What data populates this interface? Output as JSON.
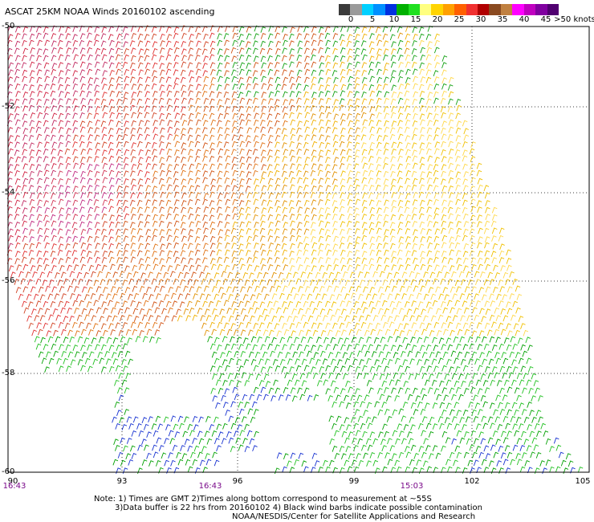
{
  "title": "ASCAT 25KM NOAA Winds 20160102 ascending",
  "legend": {
    "labels": [
      "0",
      "5",
      "10",
      "15",
      "20",
      "25",
      "30",
      "35",
      "40",
      "45",
      ">50 knots"
    ],
    "colors": [
      "#3a3a3a",
      "#9a9a9a",
      "#00d0ff",
      "#0090ff",
      "#0030e0",
      "#00b000",
      "#20e020",
      "#ffff80",
      "#ffd400",
      "#ffa000",
      "#ff6000",
      "#f03030",
      "#b00000",
      "#8a4a20",
      "#c08040",
      "#ff00ff",
      "#c000c0",
      "#8000a0",
      "#500070"
    ]
  },
  "axes": {
    "lat_labels": [
      "-50",
      "-52",
      "-54",
      "-56",
      "-58",
      "-60"
    ],
    "lon_labels": [
      "90",
      "93",
      "96",
      "99",
      "102",
      "105"
    ],
    "time_labels": [
      "16:43",
      "16:43",
      "15:03"
    ]
  },
  "notes": {
    "line1": "Note: 1) Times are GMT 2)Times along bottom correspond to measurement at ~55S",
    "line2": "3)Data buffer is 22 hrs from 20160102 4) Black wind barbs indicate possible contamination",
    "line3": "NOAA/NESDIS/Center for Satellite Applications and Research"
  }
}
